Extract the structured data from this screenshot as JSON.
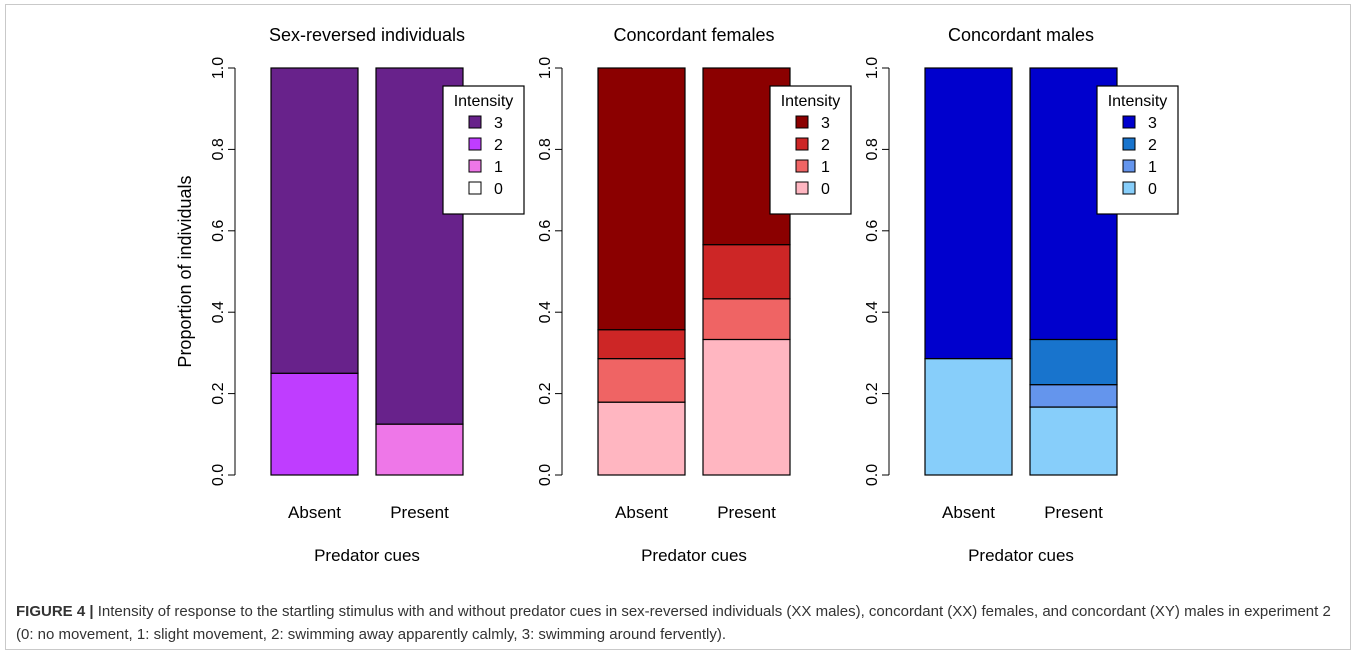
{
  "caption": {
    "label": "FIGURE 4 |",
    "text": "Intensity of response to the startling stimulus with and without predator cues in sex-reversed individuals (XX males), concordant (XX) females, and concordant (XY) males in experiment 2 (0: no movement, 1: slight movement, 2: swimming away apparently calmly, 3: swimming around fervently)."
  },
  "chart_data": [
    {
      "type": "bar",
      "stacked": true,
      "title": "Sex-reversed individuals",
      "xlabel": "Predator cues",
      "ylabel": "Proportion of individuals",
      "categories": [
        "Absent",
        "Present"
      ],
      "ylim": [
        0,
        1
      ],
      "yticks": [
        "0.0",
        "0.2",
        "0.4",
        "0.6",
        "0.8",
        "1.0"
      ],
      "legend": {
        "title": "Intensity",
        "position": "top-right"
      },
      "series": [
        {
          "name": "0",
          "color": "#ffffff",
          "values": [
            0.0,
            0.0
          ]
        },
        {
          "name": "1",
          "color": "#ee77e8",
          "values": [
            0.0,
            0.125
          ]
        },
        {
          "name": "2",
          "color": "#bf3dff",
          "values": [
            0.25,
            0.0
          ]
        },
        {
          "name": "3",
          "color": "#68228b",
          "values": [
            0.75,
            0.875
          ]
        }
      ]
    },
    {
      "type": "bar",
      "stacked": true,
      "title": "Concordant females",
      "xlabel": "Predator cues",
      "ylabel": "",
      "categories": [
        "Absent",
        "Present"
      ],
      "ylim": [
        0,
        1
      ],
      "yticks": [
        "0.0",
        "0.2",
        "0.4",
        "0.6",
        "0.8",
        "1.0"
      ],
      "legend": {
        "title": "Intensity",
        "position": "top-right"
      },
      "series": [
        {
          "name": "0",
          "color": "#ffb6c1",
          "values": [
            0.179,
            0.333
          ]
        },
        {
          "name": "1",
          "color": "#ef6464",
          "values": [
            0.107,
            0.1
          ]
        },
        {
          "name": "2",
          "color": "#cd2626",
          "values": [
            0.071,
            0.133
          ]
        },
        {
          "name": "3",
          "color": "#8b0000",
          "values": [
            0.643,
            0.434
          ]
        }
      ]
    },
    {
      "type": "bar",
      "stacked": true,
      "title": "Concordant males",
      "xlabel": "Predator cues",
      "ylabel": "",
      "categories": [
        "Absent",
        "Present"
      ],
      "ylim": [
        0,
        1
      ],
      "yticks": [
        "0.0",
        "0.2",
        "0.4",
        "0.6",
        "0.8",
        "1.0"
      ],
      "legend": {
        "title": "Intensity",
        "position": "top-right"
      },
      "series": [
        {
          "name": "0",
          "color": "#87cefa",
          "values": [
            0.286,
            0.167
          ]
        },
        {
          "name": "1",
          "color": "#6495ed",
          "values": [
            0.0,
            0.055
          ]
        },
        {
          "name": "2",
          "color": "#1874cd",
          "values": [
            0.0,
            0.111
          ]
        },
        {
          "name": "3",
          "color": "#0000cd",
          "values": [
            0.714,
            0.667
          ]
        }
      ]
    }
  ]
}
